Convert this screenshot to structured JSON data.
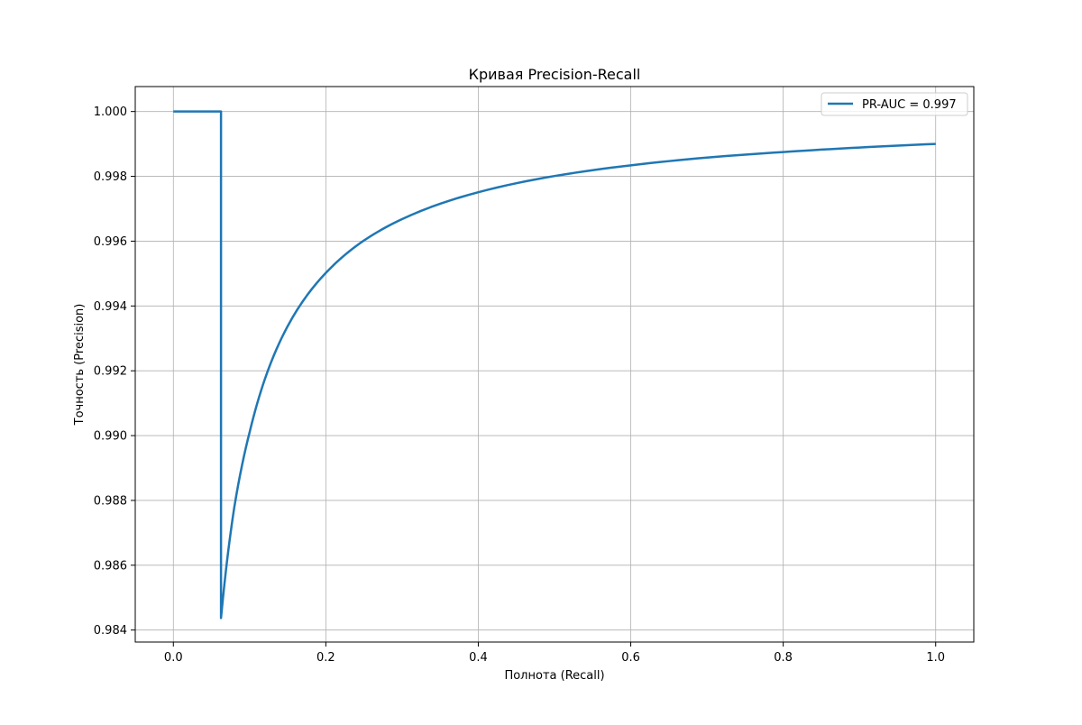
{
  "chart_data": {
    "type": "line",
    "title": "Кривая Precision-Recall",
    "xlabel": "Полнота (Recall)",
    "ylabel": "Точность (Precision)",
    "xlim": [
      -0.05,
      1.05
    ],
    "ylim": [
      0.98363,
      1.00077
    ],
    "x_ticks": [
      0.0,
      0.2,
      0.4,
      0.6,
      0.8,
      1.0
    ],
    "x_tick_labels": [
      "0.0",
      "0.2",
      "0.4",
      "0.6",
      "0.8",
      "1.0"
    ],
    "y_ticks": [
      0.984,
      0.986,
      0.988,
      0.99,
      0.992,
      0.994,
      0.996,
      0.998,
      1.0
    ],
    "y_tick_labels": [
      "0.984",
      "0.986",
      "0.988",
      "0.990",
      "0.992",
      "0.994",
      "0.996",
      "0.998",
      "1.000"
    ],
    "grid": true,
    "legend_position": "top-right",
    "series": [
      {
        "name": "PR-AUC = 0.997",
        "color": "#1f77b4",
        "x": [
          0.0,
          0.0625,
          0.0625,
          0.07,
          0.08,
          0.1,
          0.12,
          0.15,
          0.2,
          0.25,
          0.3,
          0.4,
          0.5,
          0.6,
          0.7,
          0.8,
          0.9,
          1.0
        ],
        "y": [
          1.0,
          1.0,
          0.98437,
          0.98605,
          0.9878,
          0.9901,
          0.99174,
          0.99338,
          0.99502,
          0.99602,
          0.99668,
          0.99751,
          0.99801,
          0.99834,
          0.99858,
          0.99875,
          0.99889,
          0.999
        ]
      }
    ]
  }
}
